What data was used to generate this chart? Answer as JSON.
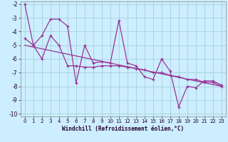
{
  "xlabel": "Windchill (Refroidissement éolien,°C)",
  "background_color": "#cceeff",
  "grid_color": "#aad4dd",
  "line_color": "#993399",
  "xlim": [
    -0.5,
    23.5
  ],
  "ylim": [
    -10.2,
    -1.8
  ],
  "xticks": [
    0,
    1,
    2,
    3,
    4,
    5,
    6,
    7,
    8,
    9,
    10,
    11,
    12,
    13,
    14,
    15,
    16,
    17,
    18,
    19,
    20,
    21,
    22,
    23
  ],
  "yticks": [
    -10,
    -9,
    -8,
    -7,
    -6,
    -5,
    -4,
    -3,
    -2
  ],
  "series1_x": [
    0,
    1,
    2,
    3,
    4,
    5,
    6,
    7,
    8,
    9,
    10,
    11,
    12,
    13,
    14,
    15,
    16,
    17,
    18,
    19,
    20,
    21,
    22,
    23
  ],
  "series1_y": [
    -2.0,
    -5.0,
    -4.3,
    -3.1,
    -3.1,
    -3.6,
    -7.75,
    -5.0,
    -6.3,
    -6.2,
    -6.3,
    -3.2,
    -6.3,
    -6.5,
    -7.3,
    -7.5,
    -6.0,
    -6.9,
    -9.5,
    -8.0,
    -8.1,
    -7.6,
    -7.6,
    -7.9
  ],
  "series2_x": [
    0,
    1,
    2,
    3,
    4,
    5,
    6,
    7,
    8,
    9,
    10,
    11,
    12,
    13,
    14,
    15,
    16,
    17,
    18,
    19,
    20,
    21,
    22,
    23
  ],
  "series2_y": [
    -4.5,
    -5.0,
    -6.0,
    -4.3,
    -5.0,
    -6.5,
    -6.5,
    -6.6,
    -6.6,
    -6.5,
    -6.5,
    -6.5,
    -6.6,
    -6.7,
    -6.8,
    -7.0,
    -7.0,
    -7.2,
    -7.3,
    -7.5,
    -7.5,
    -7.7,
    -7.7,
    -8.0
  ],
  "series3_x": [
    0,
    23
  ],
  "series3_y": [
    -5.0,
    -8.0
  ]
}
